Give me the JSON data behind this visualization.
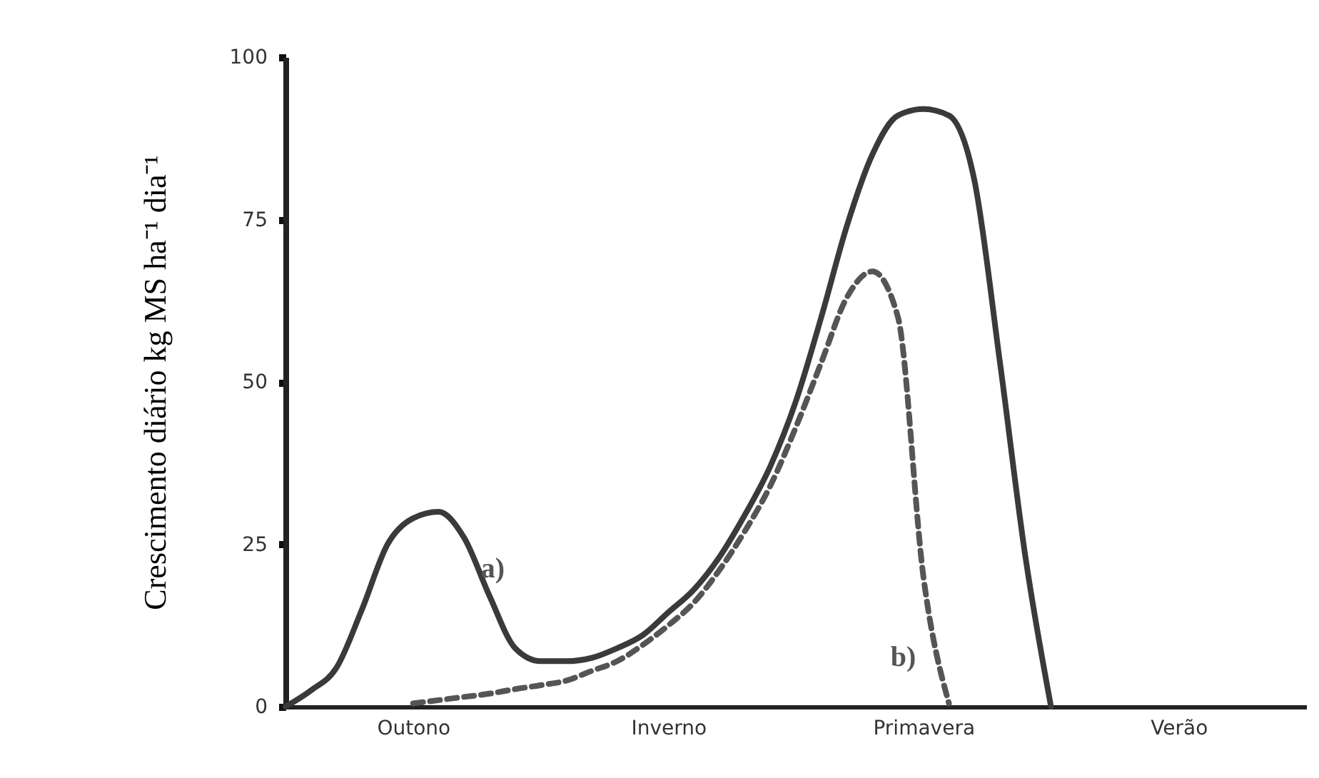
{
  "chart_data": {
    "type": "line",
    "ylabel": "Crescimento diário kg MS ha⁻¹ dia⁻¹",
    "categories": [
      null,
      null,
      null,
      null,
      null,
      "Outono",
      null,
      null,
      null,
      null,
      null,
      null,
      null,
      null,
      null,
      "Inverno",
      null,
      null,
      null,
      null,
      null,
      null,
      null,
      null,
      null,
      "Primavera",
      null,
      null,
      null,
      null,
      null,
      null,
      null,
      null,
      null,
      "Verão",
      null,
      null,
      null,
      null,
      null
    ],
    "ylim": [
      0,
      100
    ],
    "yticks": [
      0,
      25,
      50,
      75,
      100
    ],
    "grid": false,
    "series": [
      {
        "name": "a)",
        "color": "#3a3a3a",
        "line_style": "solid",
        "values": [
          0,
          2.5,
          6,
          15,
          25,
          29,
          30,
          26,
          17,
          9,
          7,
          7,
          7.5,
          9,
          11,
          14.5,
          18,
          23,
          29.5,
          37,
          47,
          60,
          74,
          85,
          91,
          92,
          91,
          81,
          53,
          23,
          0,
          null,
          null,
          null,
          null,
          null,
          null,
          null,
          null,
          null,
          null
        ]
      },
      {
        "name": "b)",
        "color": "#555555",
        "line_style": "dashed",
        "values": [
          null,
          null,
          null,
          null,
          null,
          0.5,
          1,
          1.5,
          2,
          2.7,
          3.3,
          4,
          5.5,
          7,
          9.5,
          12.5,
          16,
          21,
          27,
          34,
          43,
          53,
          63,
          67,
          60,
          20,
          0.5,
          null,
          null,
          null,
          null,
          null,
          null,
          null,
          null,
          null,
          null,
          null,
          null,
          null,
          null
        ]
      }
    ]
  }
}
